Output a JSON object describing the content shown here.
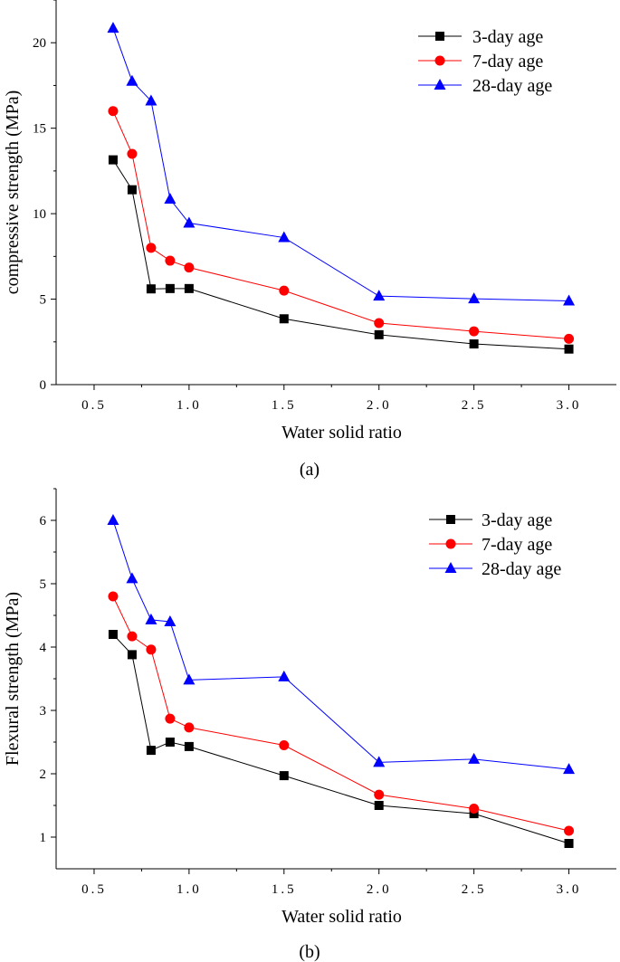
{
  "chart_data": [
    {
      "type": "line",
      "caption": "(a)",
      "title": "",
      "xlabel": "Water solid ratio",
      "ylabel": "compressive strength (MPa)",
      "xlim": [
        0.3,
        3.25
      ],
      "ylim": [
        0,
        22.5
      ],
      "xticks": [
        0.5,
        1.0,
        1.5,
        2.0,
        2.5,
        3.0
      ],
      "xtick_labels": [
        "0.5",
        "1.0",
        "1.5",
        "2.0",
        "2.5",
        "3.0"
      ],
      "yticks": [
        0,
        5,
        10,
        15,
        20
      ],
      "ytick_labels": [
        "0",
        "5",
        "10",
        "15",
        "20"
      ],
      "legend_position": "top-right",
      "series": [
        {
          "name": "3-day age",
          "color": "#000000",
          "marker": "square",
          "x": [
            0.6,
            0.7,
            0.8,
            0.9,
            1.0,
            1.5,
            2.0,
            2.5,
            3.0
          ],
          "y": [
            13.15,
            11.4,
            5.6,
            5.62,
            5.62,
            3.85,
            2.92,
            2.38,
            2.08
          ]
        },
        {
          "name": "7-day age",
          "color": "#ff0000",
          "marker": "circle",
          "x": [
            0.6,
            0.7,
            0.8,
            0.9,
            1.0,
            1.5,
            2.0,
            2.5,
            3.0
          ],
          "y": [
            16.0,
            13.5,
            8.0,
            7.25,
            6.85,
            5.5,
            3.6,
            3.12,
            2.68
          ]
        },
        {
          "name": "28-day age",
          "color": "#0000ff",
          "marker": "triangle",
          "x": [
            0.6,
            0.7,
            0.8,
            0.9,
            1.0,
            1.5,
            2.0,
            2.5,
            3.0
          ],
          "y": [
            20.85,
            17.75,
            16.6,
            10.85,
            9.45,
            8.6,
            5.18,
            5.02,
            4.9
          ]
        }
      ]
    },
    {
      "type": "line",
      "caption": "(b)",
      "title": "",
      "xlabel": "Water solid ratio",
      "ylabel": "Flexural strength (MPa)",
      "xlim": [
        0.3,
        3.25
      ],
      "ylim": [
        0.5,
        6.5
      ],
      "xticks": [
        0.5,
        1.0,
        1.5,
        2.0,
        2.5,
        3.0
      ],
      "xtick_labels": [
        "0.5",
        "1.0",
        "1.5",
        "2.0",
        "2.5",
        "3.0"
      ],
      "yticks": [
        1,
        2,
        3,
        4,
        5,
        6
      ],
      "ytick_labels": [
        "1",
        "2",
        "3",
        "4",
        "5",
        "6"
      ],
      "legend_position": "top-right",
      "series": [
        {
          "name": "3-day age",
          "color": "#000000",
          "marker": "square",
          "x": [
            0.6,
            0.7,
            0.8,
            0.9,
            1.0,
            1.5,
            2.0,
            2.5,
            3.0
          ],
          "y": [
            4.2,
            3.88,
            2.37,
            2.5,
            2.43,
            1.97,
            1.5,
            1.37,
            0.9
          ]
        },
        {
          "name": "7-day age",
          "color": "#ff0000",
          "marker": "circle",
          "x": [
            0.6,
            0.7,
            0.8,
            0.9,
            1.0,
            1.5,
            2.0,
            2.5,
            3.0
          ],
          "y": [
            4.8,
            4.17,
            3.96,
            2.87,
            2.73,
            2.45,
            1.67,
            1.45,
            1.1
          ]
        },
        {
          "name": "28-day age",
          "color": "#0000ff",
          "marker": "triangle",
          "x": [
            0.6,
            0.7,
            0.8,
            0.9,
            1.0,
            1.5,
            2.0,
            2.5,
            3.0
          ],
          "y": [
            6.0,
            5.08,
            4.43,
            4.4,
            3.48,
            3.53,
            2.18,
            2.23,
            2.07
          ]
        }
      ]
    }
  ]
}
